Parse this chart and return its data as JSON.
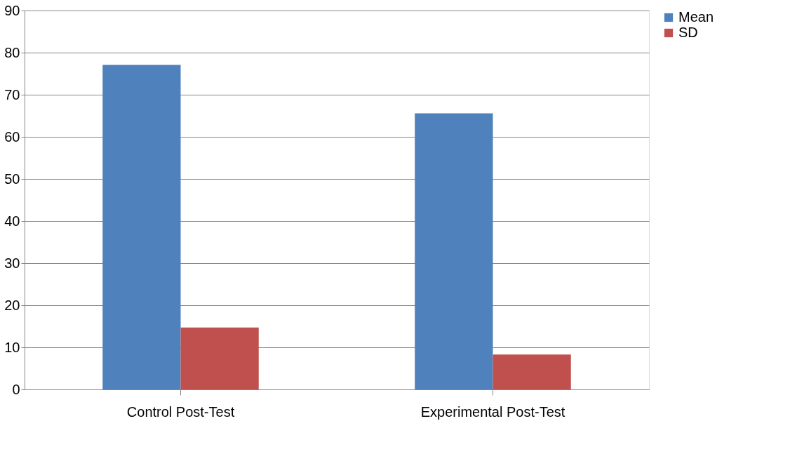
{
  "chart_data": {
    "type": "bar",
    "categories": [
      "Control Post-Test",
      "Experimental Post-Test"
    ],
    "series": [
      {
        "name": "Mean",
        "color": "#4f81bd",
        "values": [
          77.1,
          65.6
        ]
      },
      {
        "name": "SD",
        "color": "#c0504d",
        "values": [
          14.7,
          8.3
        ]
      }
    ],
    "ylim": [
      0,
      90
    ],
    "yticks": [
      0,
      10,
      20,
      30,
      40,
      50,
      60,
      70,
      80,
      90
    ],
    "grid": "y",
    "legend": "right"
  }
}
